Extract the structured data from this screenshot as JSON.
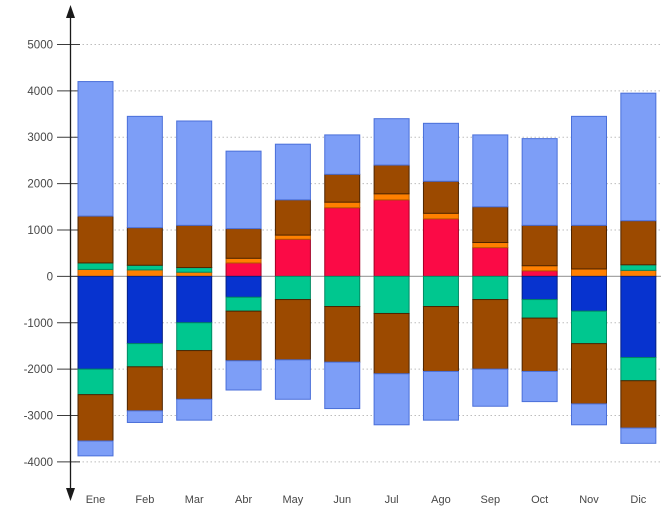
{
  "chart_data": {
    "type": "bar",
    "variant": "stacked-with-negatives",
    "title": "",
    "xlabel": "",
    "ylabel": "",
    "legend": "none",
    "grid": "dotted-horizontal",
    "axis_color": "#1a1a1a",
    "zero_line_color": "#a6a6a6",
    "gridline_color": "#bdbdbd",
    "label_color": "#474747",
    "y_ticks": [
      5000,
      4000,
      3000,
      2000,
      1000,
      0,
      -1000,
      -2000,
      -3000,
      -4000
    ],
    "ylim": [
      -4800,
      5700
    ],
    "categories": [
      "Ene",
      "Feb",
      "Mar",
      "Abr",
      "May",
      "Jun",
      "Jul",
      "Ago",
      "Sep",
      "Oct",
      "Nov",
      "Dic"
    ],
    "series": [
      {
        "name": "red",
        "color": "#FB0A46",
        "stroke": "#a30026",
        "values": [
          0,
          0,
          0,
          290,
          800,
          1480,
          1650,
          1240,
          620,
          120,
          0,
          0
        ]
      },
      {
        "name": "orange",
        "color": "#FF8000",
        "stroke": "#b85c00",
        "values": [
          150,
          140,
          90,
          100,
          90,
          120,
          130,
          120,
          110,
          110,
          160,
          130
        ]
      },
      {
        "name": "green-positive",
        "color": "#00C78F",
        "stroke": "#008a63",
        "values": [
          140,
          100,
          100,
          0,
          0,
          0,
          0,
          0,
          0,
          0,
          0,
          120
        ]
      },
      {
        "name": "brown-positive",
        "color": "#9C4A00",
        "stroke": "#4e2400",
        "values": [
          1010,
          810,
          910,
          640,
          760,
          600,
          620,
          690,
          770,
          870,
          940,
          950
        ]
      },
      {
        "name": "lightblue-positive",
        "color": "#7D9EF7",
        "stroke": "#4a6fd9",
        "values": [
          2900,
          2400,
          2250,
          1670,
          1200,
          850,
          1000,
          1250,
          1550,
          1870,
          2350,
          2750
        ]
      },
      {
        "name": "darkblue-negative",
        "color": "#0733CF",
        "stroke": "#041f85",
        "values": [
          -2000,
          -1450,
          -1000,
          -450,
          0,
          0,
          0,
          0,
          0,
          -500,
          -750,
          -1750
        ]
      },
      {
        "name": "green-negative",
        "color": "#00C78F",
        "stroke": "#008a63",
        "values": [
          -550,
          -500,
          -600,
          -300,
          -500,
          -650,
          -800,
          -650,
          -500,
          -400,
          -700,
          -500
        ]
      },
      {
        "name": "brown-negative",
        "color": "#9C4A00",
        "stroke": "#4e2400",
        "values": [
          -1000,
          -950,
          -1050,
          -1070,
          -1300,
          -1200,
          -1300,
          -1400,
          -1500,
          -1150,
          -1300,
          -1020
        ]
      },
      {
        "name": "lightblue-negative",
        "color": "#7D9EF7",
        "stroke": "#4a6fd9",
        "values": [
          -320,
          -250,
          -450,
          -630,
          -850,
          -1000,
          -1100,
          -1050,
          -800,
          -650,
          -450,
          -330
        ]
      }
    ],
    "totals_positive": [
      4200,
      3450,
      3350,
      2700,
      2850,
      3050,
      3400,
      3300,
      3050,
      2970,
      3450,
      3950
    ],
    "totals_negative": [
      -3870,
      -3150,
      -3100,
      -2450,
      -2650,
      -2850,
      -3200,
      -3100,
      -2800,
      -2700,
      -3200,
      -3600
    ]
  }
}
